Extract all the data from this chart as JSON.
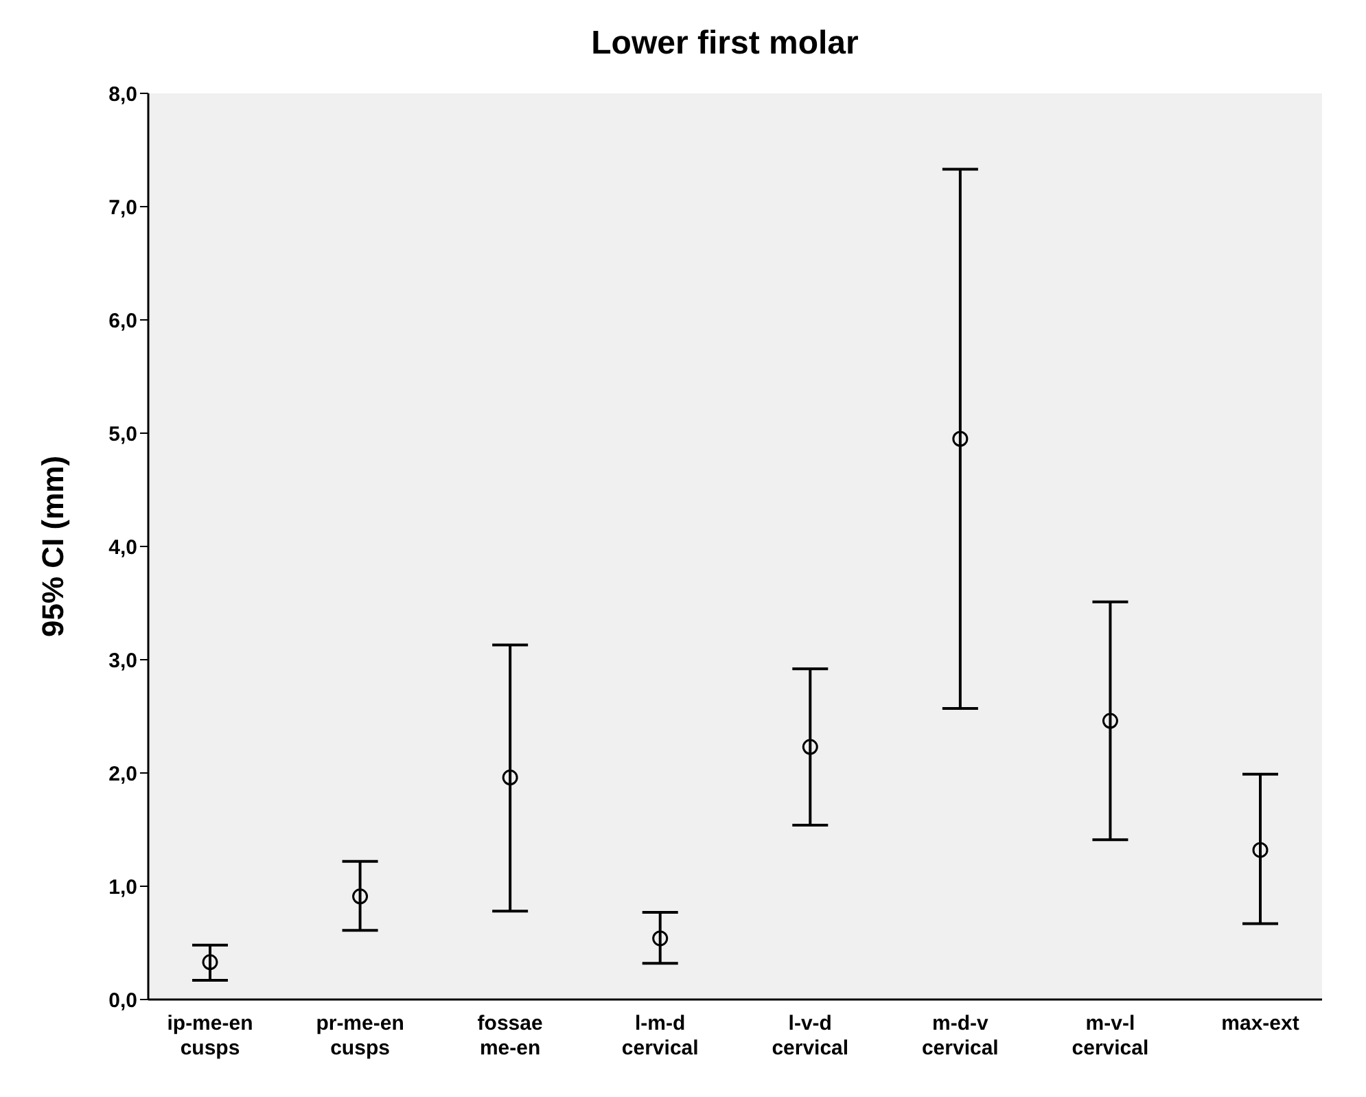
{
  "chart_data": {
    "type": "scatter",
    "title": "Lower first molar",
    "ylabel": "95% CI (mm)",
    "categories": [
      "ip-me-en cusps",
      "pr-me-en cusps",
      "fossae me-en",
      "l-m-d cervical",
      "l-v-d cervical",
      "m-d-v cervical",
      "m-v-l cervical",
      "max-ext"
    ],
    "values": [
      0.33,
      0.91,
      1.96,
      0.54,
      2.23,
      4.95,
      2.46,
      1.32
    ],
    "errors": [
      [
        0.17,
        0.48
      ],
      [
        0.61,
        1.22
      ],
      [
        0.78,
        3.13
      ],
      [
        0.32,
        0.77
      ],
      [
        1.54,
        2.92
      ],
      [
        2.57,
        7.33
      ],
      [
        1.41,
        3.51
      ],
      [
        0.67,
        1.99
      ]
    ],
    "color": "#000000",
    "marker": "circle",
    "grid": false,
    "ylim": [
      0,
      8
    ],
    "yticks": [
      {
        "value": 0,
        "label": "0,0"
      },
      {
        "value": 1,
        "label": "1,0"
      },
      {
        "value": 2,
        "label": "2,0"
      },
      {
        "value": 3,
        "label": "3,0"
      },
      {
        "value": 4,
        "label": "4,0"
      },
      {
        "value": 5,
        "label": "5,0"
      },
      {
        "value": 6,
        "label": "6,0"
      },
      {
        "value": 7,
        "label": "7,0"
      },
      {
        "value": 8,
        "label": "8,0"
      }
    ]
  }
}
